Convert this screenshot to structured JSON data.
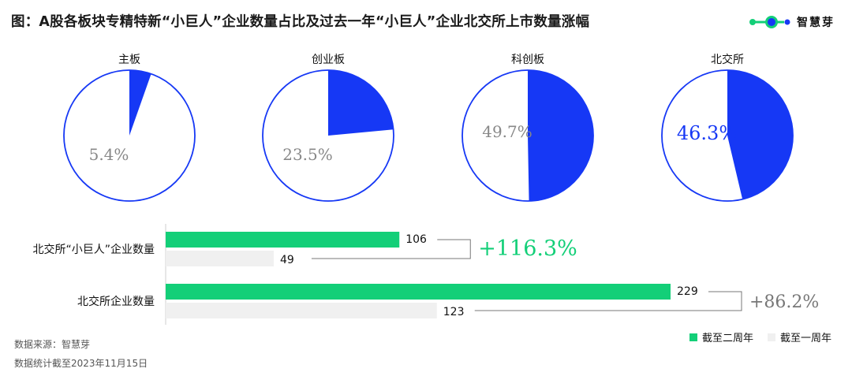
{
  "header": {
    "title": "图：A股各板块专精特新“小巨人”企业数量占比及过去一年“小巨人”企业北交所上市数量涨幅",
    "brand": "智慧芽"
  },
  "colors": {
    "blue": "#1638f5",
    "green": "#13cf78",
    "lightgray": "#f0f0f0",
    "gray_text": "#888888"
  },
  "chart_data": [
    {
      "type": "pie",
      "panels": [
        {
          "label": "主板",
          "value": 5.4,
          "display": "5.4%",
          "highlight": false
        },
        {
          "label": "创业板",
          "value": 23.5,
          "display": "23.5%",
          "highlight": false
        },
        {
          "label": "科创板",
          "value": 49.7,
          "display": "49.7%",
          "highlight": false
        },
        {
          "label": "北交所",
          "value": 46.3,
          "display": "46.3%",
          "highlight": true
        }
      ]
    },
    {
      "type": "bar",
      "orientation": "horizontal",
      "categories": [
        "北交所“小巨人”企业数量",
        "北交所企业数量"
      ],
      "series": [
        {
          "name": "截至二周年",
          "values": [
            106,
            229
          ]
        },
        {
          "name": "截至一周年",
          "values": [
            49,
            123
          ]
        }
      ],
      "growth": [
        {
          "display": "+116.3%",
          "highlight": true
        },
        {
          "display": "+86.2%",
          "highlight": false
        }
      ],
      "legend_position": "bottom-right"
    }
  ],
  "footer": {
    "source": "数据来源：智慧芽",
    "note": "数据统计截至2023年11月15日"
  }
}
